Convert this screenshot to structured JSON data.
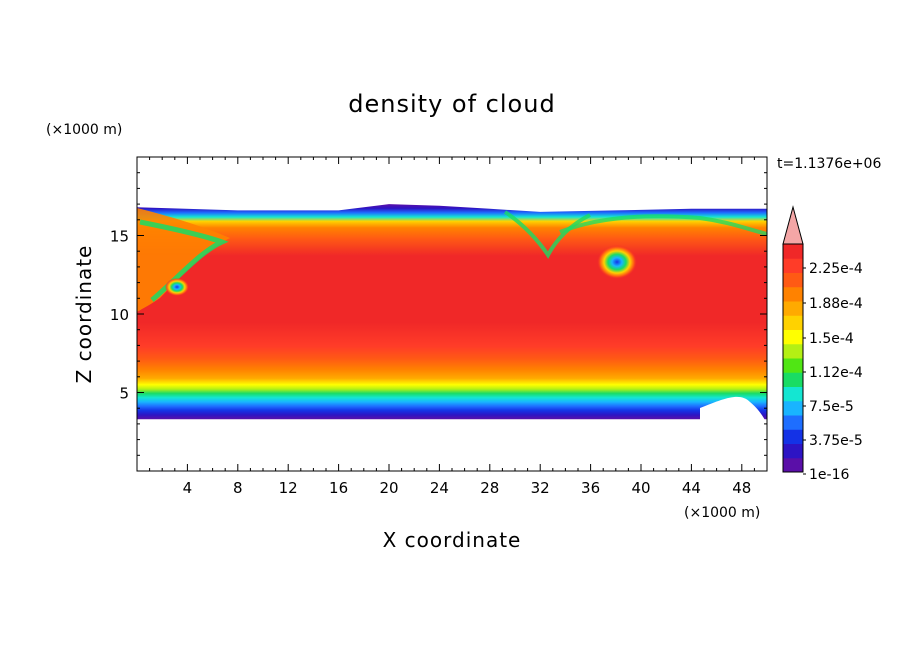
{
  "chart_data": {
    "type": "heatmap",
    "title": "density of cloud",
    "xlabel": "X coordinate",
    "ylabel": "Z coordinate",
    "x_unit": "(×1000 m)",
    "y_unit": "(×1000 m)",
    "time_label": "t=1.1376e+06",
    "xlim": [
      0,
      50
    ],
    "ylim": [
      0,
      20
    ],
    "x_ticks": [
      4,
      8,
      12,
      16,
      20,
      24,
      28,
      32,
      36,
      40,
      44,
      48
    ],
    "x_tick_labels": [
      "4",
      "8",
      "12",
      "16",
      "20",
      "24",
      "28",
      "32",
      "36",
      "40",
      "44",
      "48"
    ],
    "y_ticks": [
      5,
      10,
      15
    ],
    "y_tick_labels": [
      "5",
      "10",
      "15"
    ],
    "colorbar": {
      "labels": [
        "2.25e-4",
        "1.88e-4",
        "1.5e-4",
        "1.12e-4",
        "7.5e-5",
        "3.75e-5",
        "1e-16"
      ],
      "colors": [
        "#5a0fa8",
        "#2d14c4",
        "#1432e6",
        "#1e6eff",
        "#19b4ff",
        "#14e6d2",
        "#19dc64",
        "#50e614",
        "#b4f014",
        "#ffff00",
        "#ffd200",
        "#ffaa00",
        "#ff8200",
        "#ff5a14",
        "#ff3c28",
        "#f02828"
      ],
      "overflow_color": "#f4a6a6"
    },
    "cloud": {
      "top_km_at_x": [
        [
          0,
          16.8
        ],
        [
          8,
          16.6
        ],
        [
          16,
          16.6
        ],
        [
          20,
          17.0
        ],
        [
          24,
          16.9
        ],
        [
          28,
          16.7
        ],
        [
          32,
          16.5
        ],
        [
          38,
          16.6
        ],
        [
          44,
          16.7
        ],
        [
          50,
          16.7
        ]
      ],
      "bottom_km": 3.3,
      "core_color": "#f02828"
    }
  }
}
